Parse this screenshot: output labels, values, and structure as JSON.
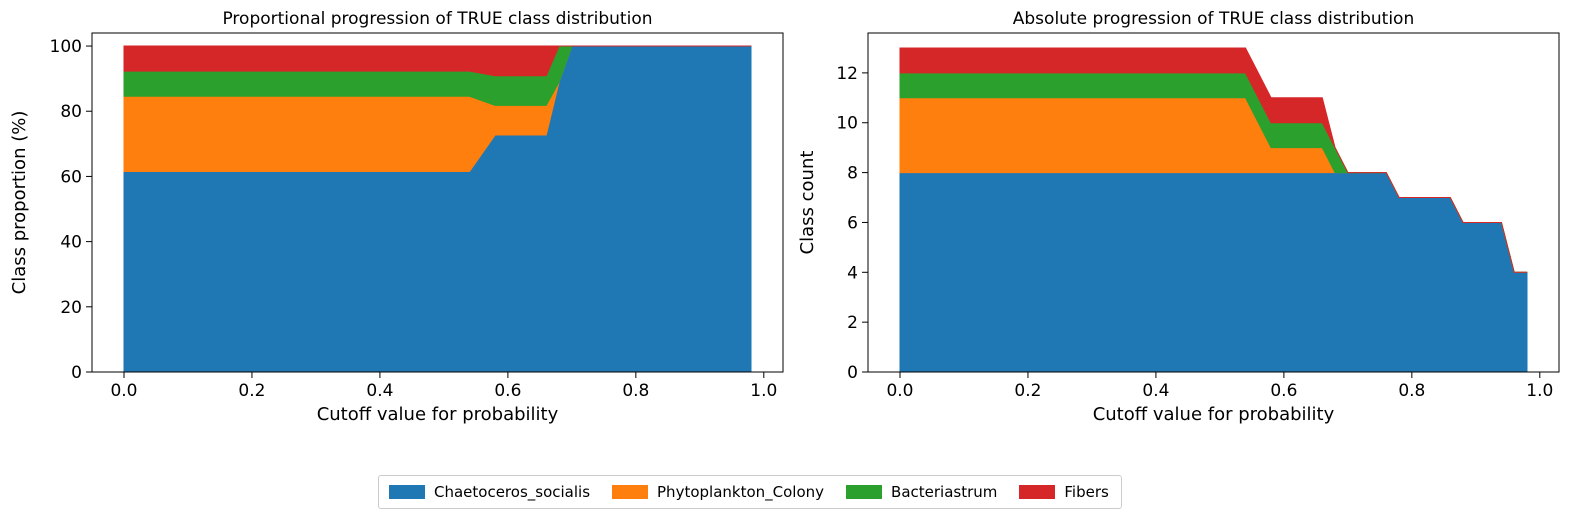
{
  "chart_data": [
    {
      "type": "area",
      "stacked": true,
      "title": "Proportional progression of TRUE class distribution",
      "xlabel": "Cutoff value for probability",
      "ylabel": "Class proportion (%)",
      "xlim": [
        -0.05,
        1.03
      ],
      "ylim": [
        0,
        104
      ],
      "xticks": [
        0.0,
        0.2,
        0.4,
        0.6,
        0.8,
        1.0
      ],
      "xtick_labels": [
        "0.0",
        "0.2",
        "0.4",
        "0.6",
        "0.8",
        "1.0"
      ],
      "yticks": [
        0,
        20,
        40,
        60,
        80,
        100
      ],
      "ytick_labels": [
        "0",
        "20",
        "40",
        "60",
        "80",
        "100"
      ],
      "x": [
        0.0,
        0.54,
        0.58,
        0.66,
        0.68,
        0.7,
        0.72,
        0.98
      ],
      "series": [
        {
          "name": "Chaetoceros_socialis",
          "values": [
            61.5,
            61.5,
            72.7,
            72.7,
            88.9,
            100,
            100,
            100
          ]
        },
        {
          "name": "Phytoplankton_Colony",
          "values": [
            23.1,
            23.1,
            9.1,
            9.1,
            0,
            0,
            0,
            0
          ]
        },
        {
          "name": "Bacteriastrum",
          "values": [
            7.7,
            7.7,
            9.1,
            9.1,
            11.1,
            0,
            0,
            0
          ]
        },
        {
          "name": "Fibers",
          "values": [
            7.7,
            7.7,
            9.1,
            9.1,
            0,
            0,
            0,
            0
          ]
        }
      ]
    },
    {
      "type": "area",
      "stacked": true,
      "title": "Absolute progression of TRUE class distribution",
      "xlabel": "Cutoff value for probability",
      "ylabel": "Class count",
      "xlim": [
        -0.05,
        1.03
      ],
      "ylim": [
        0,
        13.6
      ],
      "xticks": [
        0.0,
        0.2,
        0.4,
        0.6,
        0.8,
        1.0
      ],
      "xtick_labels": [
        "0.0",
        "0.2",
        "0.4",
        "0.6",
        "0.8",
        "1.0"
      ],
      "yticks": [
        0,
        2,
        4,
        6,
        8,
        10,
        12
      ],
      "ytick_labels": [
        "0",
        "2",
        "4",
        "6",
        "8",
        "10",
        "12"
      ],
      "x": [
        0.0,
        0.54,
        0.58,
        0.66,
        0.68,
        0.7,
        0.76,
        0.78,
        0.86,
        0.88,
        0.94,
        0.96,
        0.98
      ],
      "series": [
        {
          "name": "Chaetoceros_socialis",
          "values": [
            8,
            8,
            8,
            8,
            8,
            8,
            8,
            7,
            7,
            6,
            6,
            4,
            4
          ]
        },
        {
          "name": "Phytoplankton_Colony",
          "values": [
            3,
            3,
            1,
            1,
            0,
            0,
            0,
            0,
            0,
            0,
            0,
            0,
            0
          ]
        },
        {
          "name": "Bacteriastrum",
          "values": [
            1,
            1,
            1,
            1,
            1,
            0,
            0,
            0,
            0,
            0,
            0,
            0,
            0
          ]
        },
        {
          "name": "Fibers",
          "values": [
            1,
            1,
            1,
            1,
            0,
            0,
            0,
            0,
            0,
            0,
            0,
            0,
            0
          ]
        }
      ]
    }
  ],
  "legend": {
    "placement": "bottom-center",
    "items": [
      {
        "label": "Chaetoceros_socialis",
        "color": "#1f77b4"
      },
      {
        "label": "Phytoplankton_Colony",
        "color": "#ff7f0e"
      },
      {
        "label": "Bacteriastrum",
        "color": "#2ca02c"
      },
      {
        "label": "Fibers",
        "color": "#d62728"
      }
    ]
  }
}
